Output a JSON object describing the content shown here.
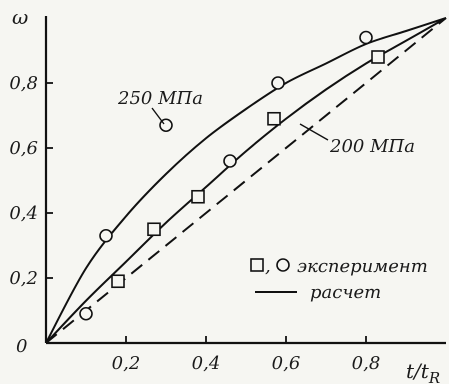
{
  "chart_data": {
    "type": "scatter",
    "title": "",
    "xlabel": "t/t_R",
    "ylabel": "ω",
    "xlim": [
      0,
      1
    ],
    "ylim": [
      0,
      1
    ],
    "grid": false,
    "legend_position": "bottom-right",
    "x_ticks": [
      {
        "value": 0.2,
        "label": "0,2"
      },
      {
        "value": 0.4,
        "label": "0,4"
      },
      {
        "value": 0.6,
        "label": "0,6"
      },
      {
        "value": 0.8,
        "label": "0,8"
      }
    ],
    "y_ticks": [
      {
        "value": 0.2,
        "label": "0,2"
      },
      {
        "value": 0.4,
        "label": "0,4"
      },
      {
        "value": 0.6,
        "label": "0,6"
      },
      {
        "value": 0.8,
        "label": "0,8"
      }
    ],
    "origin_label": "0",
    "series": [
      {
        "name": "250 МПа",
        "kind": "calculated",
        "marker": "circle",
        "curve": [
          [
            0,
            0
          ],
          [
            0.1,
            0.23
          ],
          [
            0.2,
            0.39
          ],
          [
            0.3,
            0.52
          ],
          [
            0.4,
            0.63
          ],
          [
            0.5,
            0.72
          ],
          [
            0.6,
            0.8
          ],
          [
            0.7,
            0.86
          ],
          [
            0.8,
            0.92
          ],
          [
            0.9,
            0.96
          ],
          [
            1,
            1
          ]
        ],
        "points": [
          [
            0.1,
            0.09
          ],
          [
            0.15,
            0.33
          ],
          [
            0.3,
            0.67
          ],
          [
            0.46,
            0.56
          ],
          [
            0.58,
            0.8
          ],
          [
            0.8,
            0.94
          ]
        ]
      },
      {
        "name": "200 МПа",
        "kind": "calculated",
        "marker": "square",
        "curve": [
          [
            0,
            0
          ],
          [
            0.1,
            0.13
          ],
          [
            0.2,
            0.25
          ],
          [
            0.3,
            0.37
          ],
          [
            0.4,
            0.48
          ],
          [
            0.5,
            0.59
          ],
          [
            0.6,
            0.69
          ],
          [
            0.7,
            0.78
          ],
          [
            0.8,
            0.86
          ],
          [
            0.9,
            0.93
          ],
          [
            1,
            1
          ]
        ],
        "points": [
          [
            0.18,
            0.19
          ],
          [
            0.27,
            0.35
          ],
          [
            0.38,
            0.45
          ],
          [
            0.57,
            0.69
          ],
          [
            0.83,
            0.88
          ]
        ]
      },
      {
        "name": "",
        "kind": "diagonal",
        "style": "dashed",
        "curve": [
          [
            0,
            0
          ],
          [
            1,
            1
          ]
        ]
      }
    ],
    "annotations": [
      {
        "text": "250 МПа",
        "series": 0
      },
      {
        "text": "200 МПа",
        "series": 1
      }
    ],
    "legend": {
      "experiment_label": "эксперимент",
      "calc_label": "расчет"
    }
  }
}
